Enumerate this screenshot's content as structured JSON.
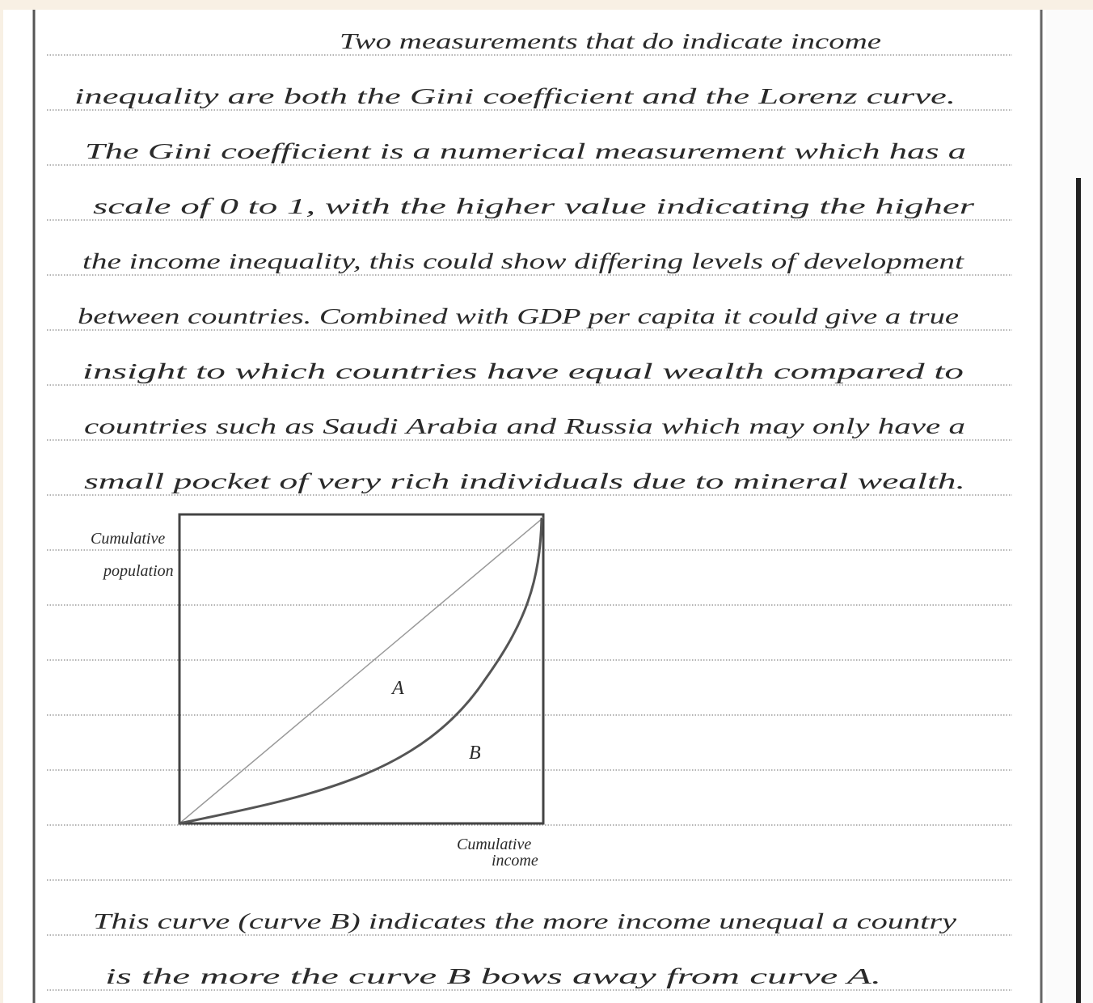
{
  "essay": {
    "lines": [
      "Two measurements that do indicate income",
      "inequality are both the Gini coefficient and the Lorenz curve.",
      "The Gini coefficient is a numerical measurement which has a",
      "scale of 0 to 1, with the higher value indicating the higher",
      "the income inequality, this could show differing levels of development",
      "between countries. Combined with GDP per capita it could give a true",
      "insight to which countries have equal wealth compared to",
      "countries such as Saudi Arabia and Russia which may only have a",
      "small pocket of very rich individuals due to mineral wealth."
    ],
    "diagram": {
      "y_label": [
        "Cumulative",
        "population"
      ],
      "region_a": "A",
      "region_b": "B",
      "x_label": [
        "Cumulative",
        "income"
      ]
    },
    "closing_lines": [
      "This curve (curve B) indicates the more income unequal a country",
      "is the more the curve B bows away from curve A."
    ]
  }
}
